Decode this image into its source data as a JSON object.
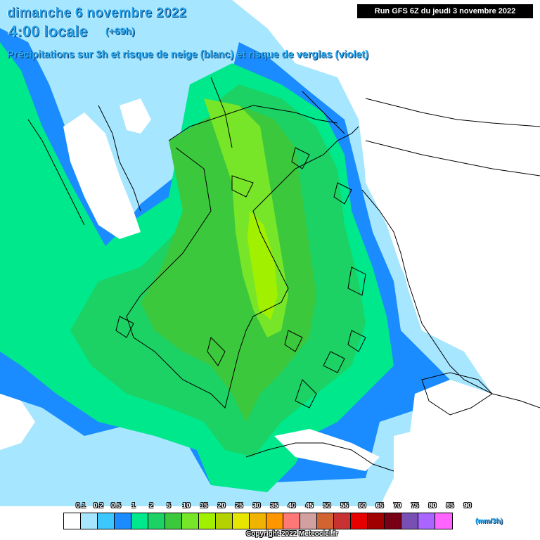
{
  "header": {
    "date_line": "dimanche 6 novembre 2022",
    "time_line": "4:00 locale",
    "lead_time": "(+69h)",
    "subtitle": "Précipitations sur 3h et risque de neige (blanc) et risque de verglas (violet)",
    "run_label": "Run GFS 6Z du jeudi 3 novembre 2022"
  },
  "legend": {
    "labels": [
      "0.1",
      "0.2",
      "0.5",
      "1",
      "2",
      "5",
      "10",
      "15",
      "20",
      "25",
      "30",
      "35",
      "40",
      "45",
      "50",
      "55",
      "60",
      "65",
      "70",
      "75",
      "80",
      "85",
      "90"
    ],
    "colors": [
      "#ffffff",
      "#a6e6ff",
      "#3cc8ff",
      "#1a8cff",
      "#00e88c",
      "#1cd264",
      "#3cc83c",
      "#78e628",
      "#a0f000",
      "#b4d200",
      "#e6e600",
      "#f0b400",
      "#ff9600",
      "#ff7878",
      "#d2a0a0",
      "#d26432",
      "#c83232",
      "#e60000",
      "#a00000",
      "#780014",
      "#7850b4",
      "#aa64ff",
      "#ff64ff"
    ],
    "unit": "(mm/3h)"
  },
  "colors": {
    "precip_light": "#a6e6ff",
    "precip_blue": "#3cc8ff",
    "precip_deep": "#1a8cff",
    "precip_green": "#00e88c",
    "precip_mid": "#1cd264",
    "precip_olive": "#3cc83c",
    "precip_bright": "#78e628",
    "precip_yellow": "#a0f000"
  },
  "footer": {
    "copyright": "Copyright 2022 Meteociel.fr"
  }
}
